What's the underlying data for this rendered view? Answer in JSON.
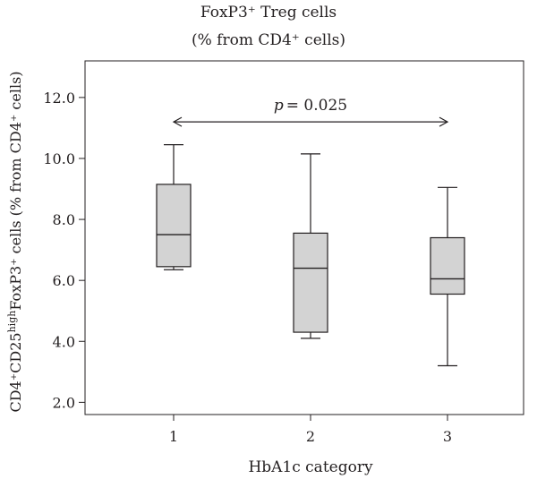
{
  "chart_data": {
    "type": "box",
    "title_line1": "FoxP3⁺ Treg cells",
    "title_line2": "(% from CD4⁺ cells)",
    "xlabel": "HbA1c category",
    "ylabel": {
      "p1": "CD4⁺CD25",
      "sup1": "high",
      "p2": "FoxP3⁺ cells (% from CD4⁺ cells)"
    },
    "ylim": [
      1.6,
      13.2
    ],
    "yticks": [
      2.0,
      4.0,
      6.0,
      8.0,
      10.0,
      12.0
    ],
    "ytick_labels": [
      "2.0",
      "4.0",
      "6.0",
      "8.0",
      "10.0",
      "12.0"
    ],
    "categories": [
      "1",
      "2",
      "3"
    ],
    "boxes": [
      {
        "category": "1",
        "whisker_low": 6.35,
        "q1": 6.45,
        "median": 7.5,
        "q3": 9.15,
        "whisker_high": 10.45
      },
      {
        "category": "2",
        "whisker_low": 4.1,
        "q1": 4.3,
        "median": 6.4,
        "q3": 7.55,
        "whisker_high": 10.15
      },
      {
        "category": "3",
        "whisker_low": 3.2,
        "q1": 5.55,
        "median": 6.05,
        "q3": 7.4,
        "whisker_high": 9.05
      }
    ],
    "annotation": {
      "p_symbol": "p",
      "text": "= 0.025",
      "from_category": "1",
      "to_category": "3",
      "y": 11.2
    },
    "box_fill": "#d3d3d3",
    "line_color": "#231f20"
  }
}
